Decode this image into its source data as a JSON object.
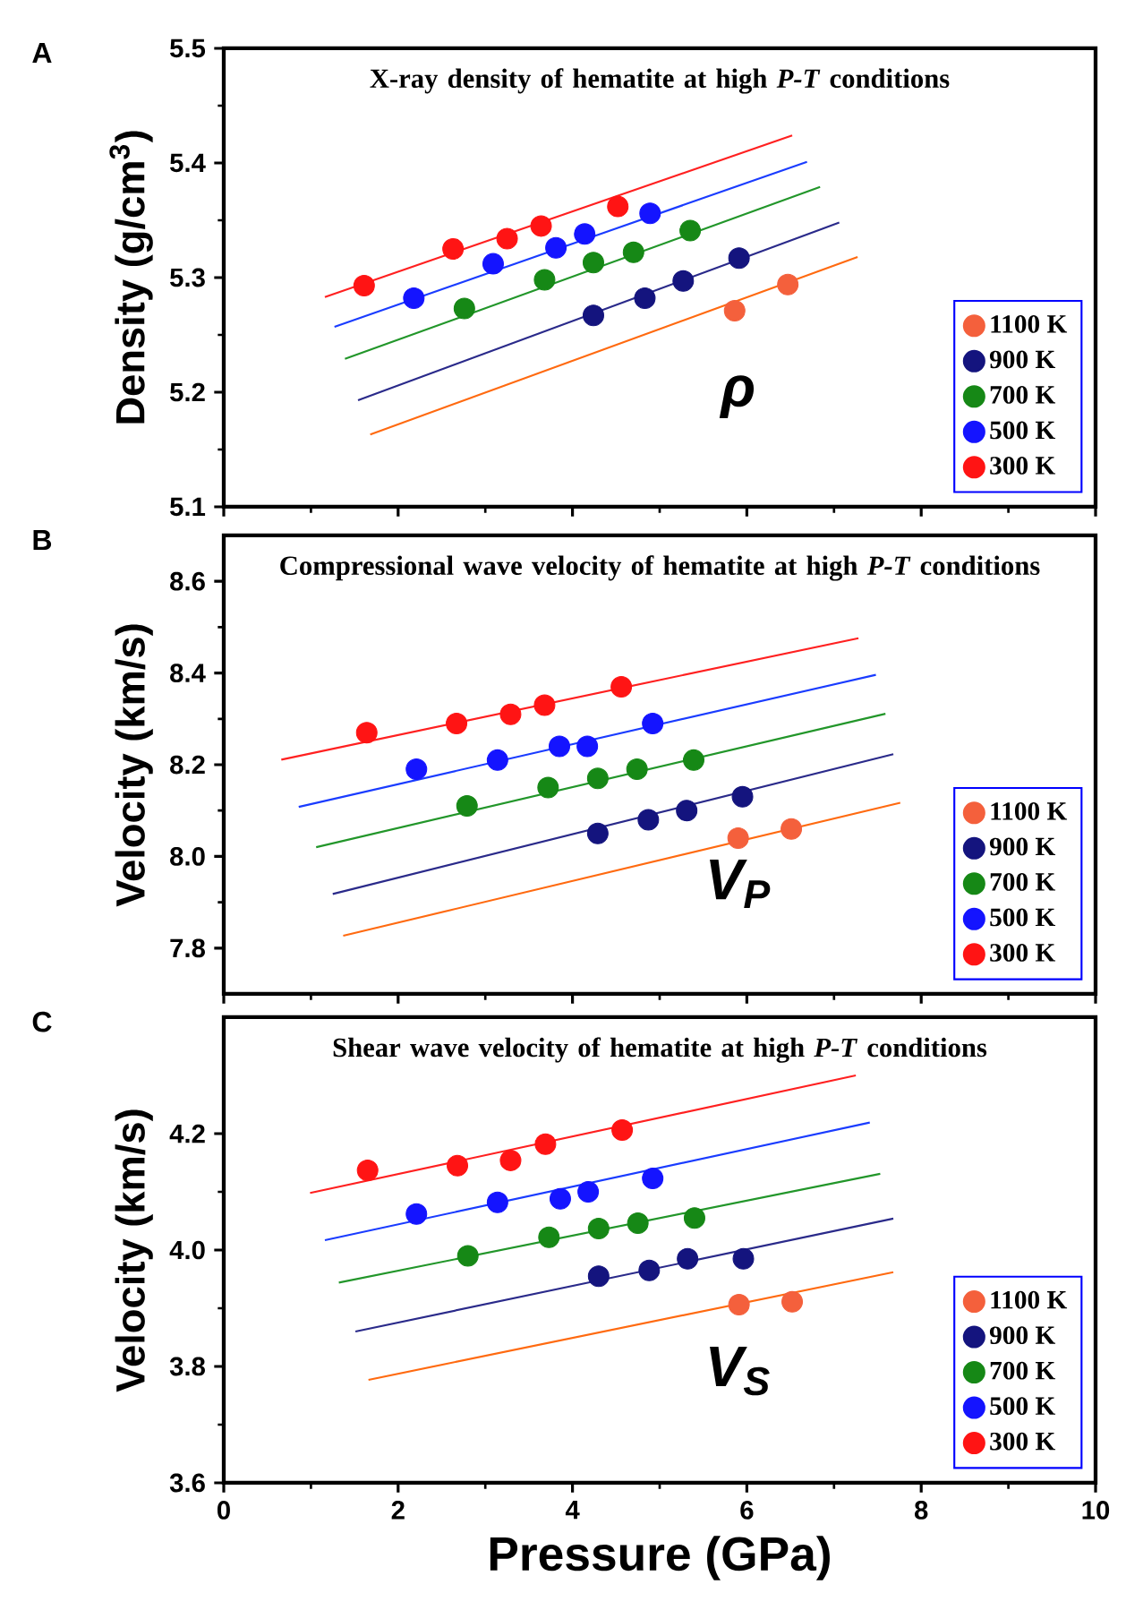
{
  "chart_data": [
    {
      "type": "scatter",
      "title": "X-ray density of hematite at high *P-T* conditions",
      "ylabel": "Density (g/cm$^{3}$)",
      "annotations": [
        "A",
        "ρ"
      ],
      "xlim": [
        0,
        10
      ],
      "xticks": [
        0,
        2,
        4,
        6,
        8,
        10
      ],
      "ylim": [
        5.1,
        5.5
      ],
      "yticks": [
        5.1,
        5.2,
        5.3,
        5.4,
        5.5
      ],
      "tick_labels": "y",
      "legend": "bottom right",
      "marker": "circle",
      "series": [
        {
          "name": "1100 K",
          "color": "#f4603c",
          "x": [
            5.86,
            6.47
          ],
          "values": [
            5.271,
            5.294
          ]
        },
        {
          "name": "900 K",
          "color": "#14147e",
          "x": [
            4.24,
            4.83,
            5.27,
            5.91
          ],
          "values": [
            5.267,
            5.282,
            5.297,
            5.317
          ]
        },
        {
          "name": "700 K",
          "color": "#168816",
          "x": [
            2.76,
            3.68,
            4.24,
            4.7,
            5.35
          ],
          "values": [
            5.273,
            5.298,
            5.313,
            5.322,
            5.341
          ]
        },
        {
          "name": "500 K",
          "color": "#1414ff",
          "x": [
            2.18,
            3.09,
            3.81,
            4.14,
            4.89
          ],
          "values": [
            5.282,
            5.312,
            5.326,
            5.338,
            5.356
          ]
        },
        {
          "name": "300 K",
          "color": "#ff1414",
          "x": [
            1.61,
            2.63,
            3.25,
            3.64,
            4.52
          ],
          "values": [
            5.293,
            5.325,
            5.334,
            5.345,
            5.362
          ]
        },
        {
          "type": "line",
          "marker": "none",
          "line_style": "solid",
          "color": "#ff6a10",
          "x": [
            1.68,
            7.27
          ],
          "values": [
            5.163,
            5.318
          ]
        },
        {
          "type": "line",
          "marker": "none",
          "line_style": "solid",
          "color": "#2a2a8a",
          "x": [
            1.54,
            7.06
          ],
          "values": [
            5.193,
            5.348
          ]
        },
        {
          "type": "line",
          "marker": "none",
          "line_style": "solid",
          "color": "#22962a",
          "x": [
            1.39,
            6.84
          ],
          "values": [
            5.229,
            5.379
          ]
        },
        {
          "type": "line",
          "marker": "none",
          "line_style": "solid",
          "color": "#1a3cff",
          "x": [
            1.27,
            6.69
          ],
          "values": [
            5.257,
            5.401
          ]
        },
        {
          "type": "line",
          "marker": "none",
          "line_style": "solid",
          "color": "#ff2020",
          "x": [
            1.16,
            6.52
          ],
          "values": [
            5.283,
            5.424
          ]
        }
      ]
    },
    {
      "type": "scatter",
      "title": "Compressional wave velocity of hematite at high *P-T* conditions",
      "ylabel": "Velocity (km/s)",
      "annotations": [
        "B",
        "V$_{P}$"
      ],
      "xlim": [
        0,
        10
      ],
      "xticks": [
        0,
        2,
        4,
        6,
        8,
        10
      ],
      "ylim": [
        7.7,
        8.7
      ],
      "yticks": [
        7.8,
        {
          "value": 8.0,
          "label": "8.0"
        },
        8.2,
        8.4,
        8.6
      ],
      "tick_labels": "y",
      "legend": "bottom right",
      "marker": "circle",
      "series": [
        {
          "name": "1100 K",
          "color": "#f4603c",
          "x": [
            5.9,
            6.51
          ],
          "values": [
            8.04,
            8.06
          ]
        },
        {
          "name": "900 K",
          "color": "#14147e",
          "x": [
            4.29,
            4.87,
            5.31,
            5.95
          ],
          "values": [
            8.05,
            8.08,
            8.1,
            8.13
          ]
        },
        {
          "name": "700 K",
          "color": "#168816",
          "x": [
            2.79,
            3.72,
            4.29,
            4.74,
            5.39
          ],
          "values": [
            8.11,
            8.15,
            8.17,
            8.19,
            8.21
          ]
        },
        {
          "name": "500 K",
          "color": "#1414ff",
          "x": [
            2.21,
            3.14,
            3.85,
            4.17,
            4.92
          ],
          "values": [
            8.19,
            8.21,
            8.24,
            8.24,
            8.29
          ]
        },
        {
          "name": "300 K",
          "color": "#ff1414",
          "x": [
            1.64,
            2.67,
            3.29,
            3.68,
            4.56
          ],
          "values": [
            8.27,
            8.29,
            8.31,
            8.33,
            8.37
          ]
        },
        {
          "type": "line",
          "marker": "none",
          "line_style": "solid",
          "color": "#ff6a10",
          "x": [
            1.37,
            7.76
          ],
          "values": [
            7.827,
            8.117
          ]
        },
        {
          "type": "line",
          "marker": "none",
          "line_style": "solid",
          "color": "#2a2a8a",
          "x": [
            1.25,
            7.68
          ],
          "values": [
            7.918,
            8.223
          ]
        },
        {
          "type": "line",
          "marker": "none",
          "line_style": "solid",
          "color": "#22962a",
          "x": [
            1.06,
            7.59
          ],
          "values": [
            8.02,
            8.311
          ]
        },
        {
          "type": "line",
          "marker": "none",
          "line_style": "solid",
          "color": "#1a3cff",
          "x": [
            0.86,
            7.48
          ],
          "values": [
            8.108,
            8.396
          ]
        },
        {
          "type": "line",
          "marker": "none",
          "line_style": "solid",
          "color": "#ff2020",
          "x": [
            0.66,
            7.28
          ],
          "values": [
            8.211,
            8.476
          ]
        }
      ]
    },
    {
      "type": "scatter",
      "title": "Shear wave velocity of hematite at high *P-T* conditions",
      "xlabel": "Pressure (GPa)",
      "ylabel": "Velocity (km/s)",
      "annotations": [
        "C",
        "V$_{S}$"
      ],
      "xlim": [
        0,
        10
      ],
      "xticks": [
        0,
        2,
        4,
        6,
        8,
        10
      ],
      "ylim": [
        3.6,
        4.4
      ],
      "yticks": [
        3.6,
        3.8,
        {
          "value": 4.0,
          "label": "4.0"
        },
        4.2
      ],
      "legend": "bottom right",
      "marker": "circle",
      "series": [
        {
          "name": "1100 K",
          "color": "#f4603c",
          "x": [
            5.91,
            6.52
          ],
          "values": [
            3.906,
            3.911
          ]
        },
        {
          "name": "900 K",
          "color": "#14147e",
          "x": [
            4.3,
            4.88,
            5.32,
            5.96
          ],
          "values": [
            3.955,
            3.965,
            3.985,
            3.985
          ]
        },
        {
          "name": "700 K",
          "color": "#168816",
          "x": [
            2.8,
            3.73,
            4.3,
            4.75,
            5.4
          ],
          "values": [
            3.99,
            4.022,
            4.037,
            4.046,
            4.055
          ]
        },
        {
          "name": "500 K",
          "color": "#1414ff",
          "x": [
            2.21,
            3.14,
            3.86,
            4.18,
            4.92
          ],
          "values": [
            4.062,
            4.082,
            4.088,
            4.1,
            4.123
          ]
        },
        {
          "name": "300 K",
          "color": "#ff1414",
          "x": [
            1.65,
            2.68,
            3.29,
            3.69,
            4.57
          ],
          "values": [
            4.137,
            4.145,
            4.154,
            4.182,
            4.206
          ]
        },
        {
          "type": "line",
          "marker": "none",
          "line_style": "solid",
          "color": "#ff6a10",
          "x": [
            1.66,
            7.68
          ],
          "values": [
            3.777,
            3.962
          ]
        },
        {
          "type": "line",
          "marker": "none",
          "line_style": "solid",
          "color": "#2a2a8a",
          "x": [
            1.51,
            7.68
          ],
          "values": [
            3.86,
            4.054
          ]
        },
        {
          "type": "line",
          "marker": "none",
          "line_style": "solid",
          "color": "#22962a",
          "x": [
            1.32,
            7.53
          ],
          "values": [
            3.944,
            4.131
          ]
        },
        {
          "type": "line",
          "marker": "none",
          "line_style": "solid",
          "color": "#1a3cff",
          "x": [
            1.16,
            7.41
          ],
          "values": [
            4.017,
            4.219
          ]
        },
        {
          "type": "line",
          "marker": "none",
          "line_style": "solid",
          "color": "#ff2020",
          "x": [
            0.99,
            7.25
          ],
          "values": [
            4.098,
            4.3
          ]
        }
      ]
    }
  ]
}
